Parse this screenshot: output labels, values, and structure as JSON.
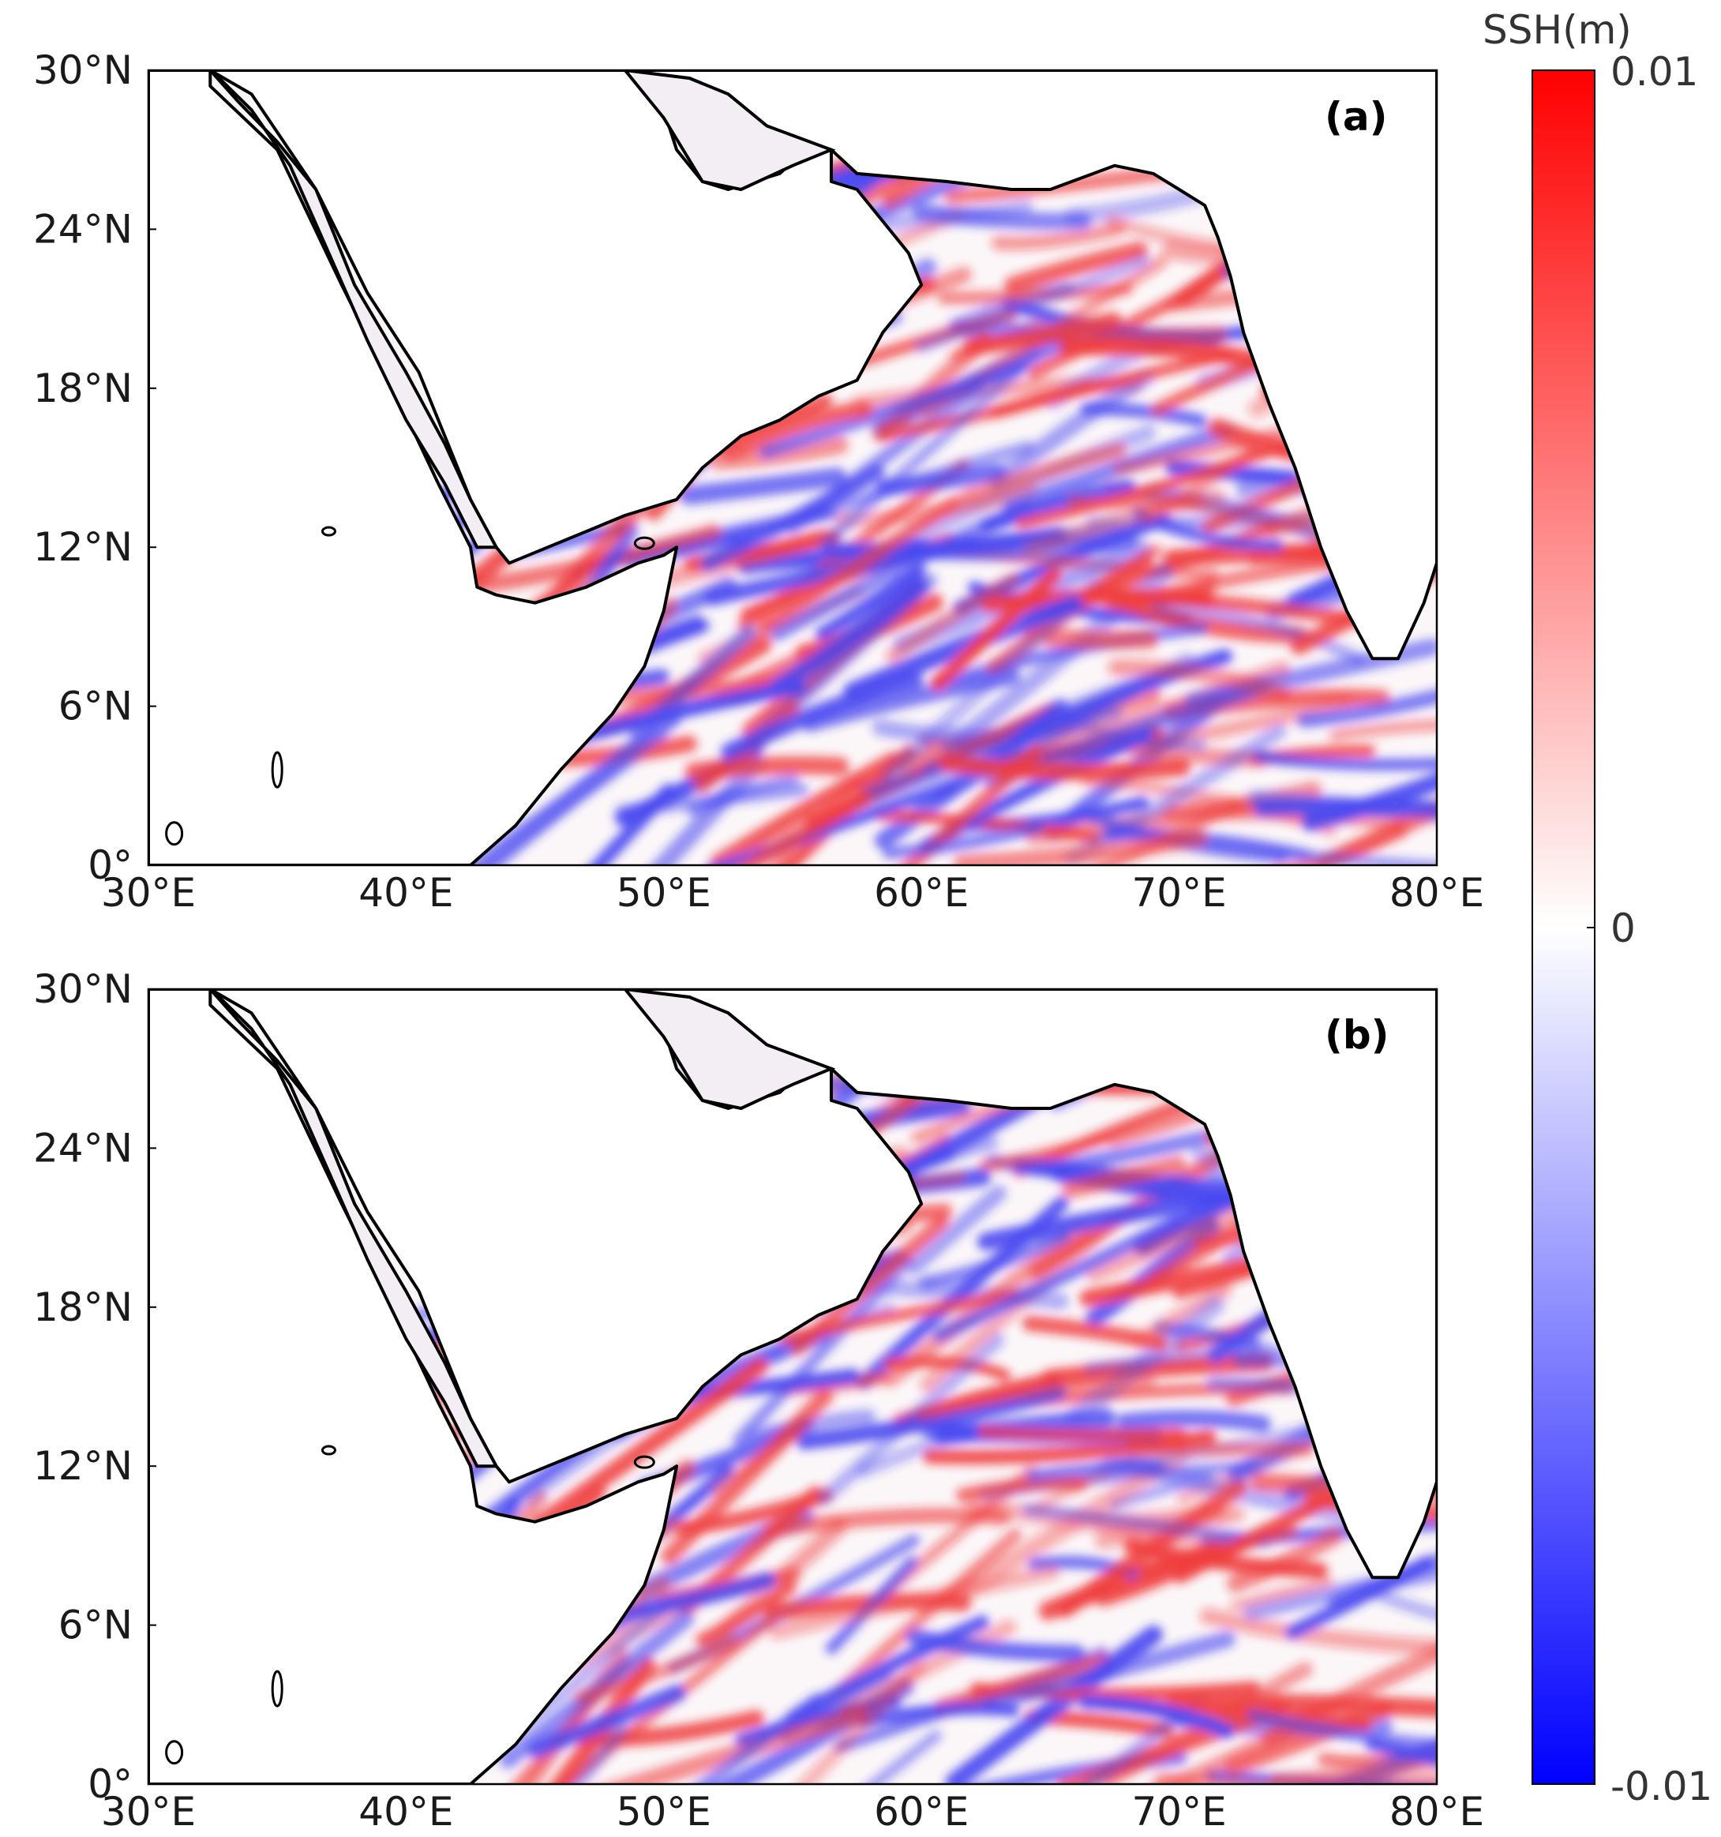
{
  "colorbar": {
    "title": "SSH(m)",
    "max_label": "0.01",
    "mid_label": "0",
    "min_label": "-0.01",
    "range": [
      -0.01,
      0.01
    ],
    "colormap": [
      "#0000ff",
      "#ffffff",
      "#ff0000"
    ]
  },
  "axes": {
    "lat_labels": [
      "30°N",
      "24°N",
      "18°N",
      "12°N",
      "6°N",
      "0°"
    ],
    "lat_values": [
      30,
      24,
      18,
      12,
      6,
      0
    ],
    "lon_labels": [
      "30°E",
      "40°E",
      "50°E",
      "60°E",
      "70°E",
      "80°E"
    ],
    "lon_values": [
      30,
      40,
      50,
      60,
      70,
      80
    ],
    "lon_range": [
      30,
      80
    ],
    "lat_range": [
      0,
      30
    ]
  },
  "panels": [
    {
      "id": "a",
      "label": "(a)"
    },
    {
      "id": "b",
      "label": "(b)"
    }
  ]
}
